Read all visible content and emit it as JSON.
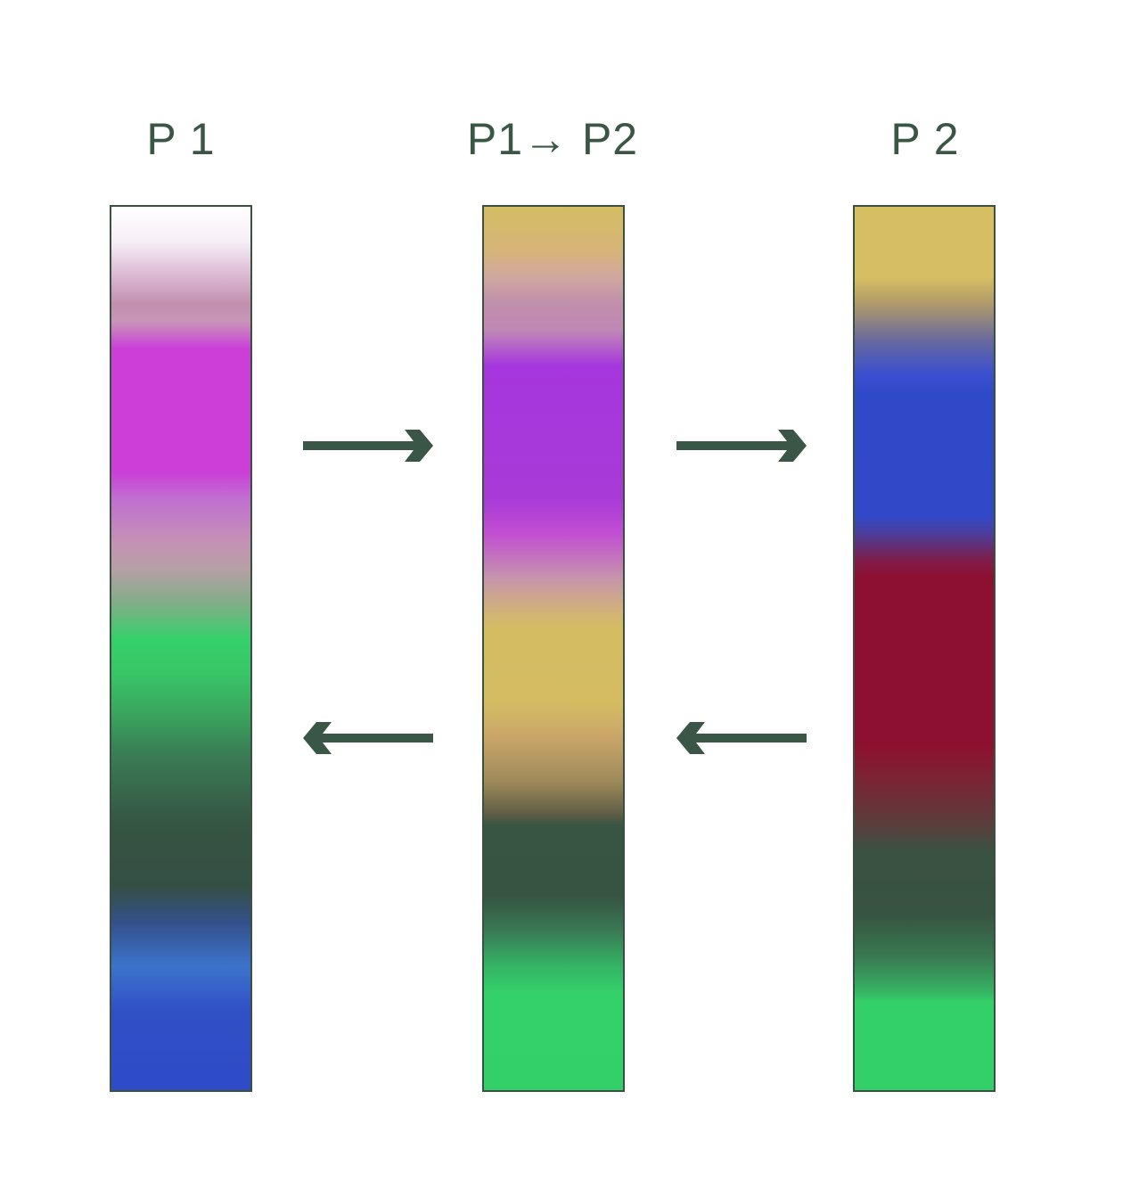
{
  "labels": {
    "left": "P 1",
    "middle": "P1→ P2",
    "right": "P 2"
  },
  "arrows": [
    {
      "name": "arrow-right-top-left",
      "direction": "right"
    },
    {
      "name": "arrow-right-top-right",
      "direction": "right"
    },
    {
      "name": "arrow-left-bottom-left",
      "direction": "left"
    },
    {
      "name": "arrow-left-bottom-right",
      "direction": "left"
    }
  ],
  "colors": {
    "label_text": "#3a5644",
    "arrow": "#3a5646",
    "column_border": "#3a5142"
  }
}
